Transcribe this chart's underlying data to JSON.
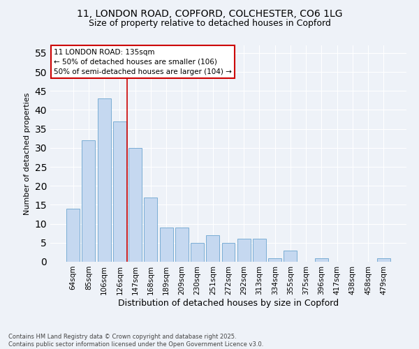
{
  "title_line1": "11, LONDON ROAD, COPFORD, COLCHESTER, CO6 1LG",
  "title_line2": "Size of property relative to detached houses in Copford",
  "xlabel": "Distribution of detached houses by size in Copford",
  "ylabel": "Number of detached properties",
  "categories": [
    "64sqm",
    "85sqm",
    "106sqm",
    "126sqm",
    "147sqm",
    "168sqm",
    "189sqm",
    "209sqm",
    "230sqm",
    "251sqm",
    "272sqm",
    "292sqm",
    "313sqm",
    "334sqm",
    "355sqm",
    "375sqm",
    "396sqm",
    "417sqm",
    "438sqm",
    "458sqm",
    "479sqm"
  ],
  "values": [
    14,
    32,
    43,
    37,
    30,
    17,
    9,
    9,
    5,
    7,
    5,
    6,
    6,
    1,
    3,
    0,
    1,
    0,
    0,
    0,
    1
  ],
  "bar_color": "#c5d8f0",
  "bar_edge_color": "#7aadd4",
  "background_color": "#eef2f8",
  "grid_color": "#ffffff",
  "property_line_x": 3.5,
  "property_label": "11 LONDON ROAD: 135sqm",
  "annotation_line1": "← 50% of detached houses are smaller (106)",
  "annotation_line2": "50% of semi-detached houses are larger (104) →",
  "annotation_box_color": "#ffffff",
  "annotation_box_edge": "#cc0000",
  "property_line_color": "#cc0000",
  "ylim": [
    0,
    57
  ],
  "yticks": [
    0,
    5,
    10,
    15,
    20,
    25,
    30,
    35,
    40,
    45,
    50,
    55
  ],
  "footer_line1": "Contains HM Land Registry data © Crown copyright and database right 2025.",
  "footer_line2": "Contains public sector information licensed under the Open Government Licence v3.0."
}
